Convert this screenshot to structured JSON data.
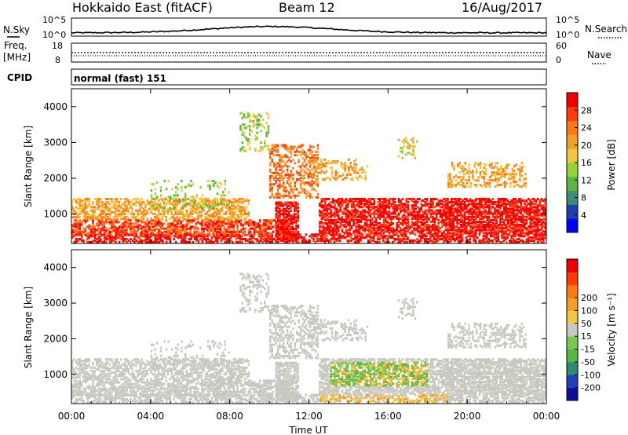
{
  "header": {
    "title": "Hokkaido East (fitACF)",
    "beam": "Beam 12",
    "date": "16/Aug/2017"
  },
  "nsky_panel": {
    "left_label": "N.Sky",
    "right_label": "N.Search",
    "left_ticks": [
      "10^5",
      "10^0"
    ],
    "right_ticks": [
      "10^5",
      "10^0"
    ]
  },
  "freq_panel": {
    "left_label_line1": "Freq.",
    "left_label_line2": "[MHz]",
    "right_label": "Nave",
    "left_ticks": [
      "18",
      "8"
    ],
    "right_ticks": [
      "60",
      "0"
    ]
  },
  "cpid": {
    "label": "CPID",
    "text": "normal (fast) 151"
  },
  "chart_data": [
    {
      "type": "heatmap",
      "quantity": "power",
      "ylabel": "Slant Range [km]",
      "ylim": [
        180,
        4500
      ],
      "y_ticks": [
        "1000",
        "2000",
        "3000",
        "4000"
      ],
      "colorbar": {
        "label": "Power [dB]",
        "levels": [
          "4",
          "8",
          "12",
          "16",
          "20",
          "24",
          "28"
        ],
        "colors": [
          "#0000ff",
          "#1f3fb0",
          "#3c8c78",
          "#5ab446",
          "#96d23c",
          "#f0c83c",
          "#f0a028",
          "#ff7814",
          "#ff3c0a",
          "#f00000"
        ]
      }
    },
    {
      "type": "heatmap",
      "quantity": "velocity",
      "ylabel": "Slant Range [km]",
      "xlabel": "Time UT",
      "ylim": [
        180,
        4500
      ],
      "y_ticks": [
        "1000",
        "2000",
        "3000",
        "4000"
      ],
      "x_ticks": [
        "00:00",
        "04:00",
        "08:00",
        "12:00",
        "16:00",
        "20:00",
        "00:00"
      ],
      "colorbar": {
        "label": "Velocity [m s⁻¹]",
        "levels": [
          "200",
          "100",
          "50",
          "15",
          "-15",
          "-50",
          "-100",
          "-200"
        ],
        "colors": [
          "#1010a0",
          "#2040c0",
          "#2d8c6e",
          "#5ab446",
          "#78c850",
          "#c8c8c0",
          "#f0c846",
          "#f0a028",
          "#ff7814",
          "#ff3c0a",
          "#f00000"
        ]
      }
    }
  ]
}
